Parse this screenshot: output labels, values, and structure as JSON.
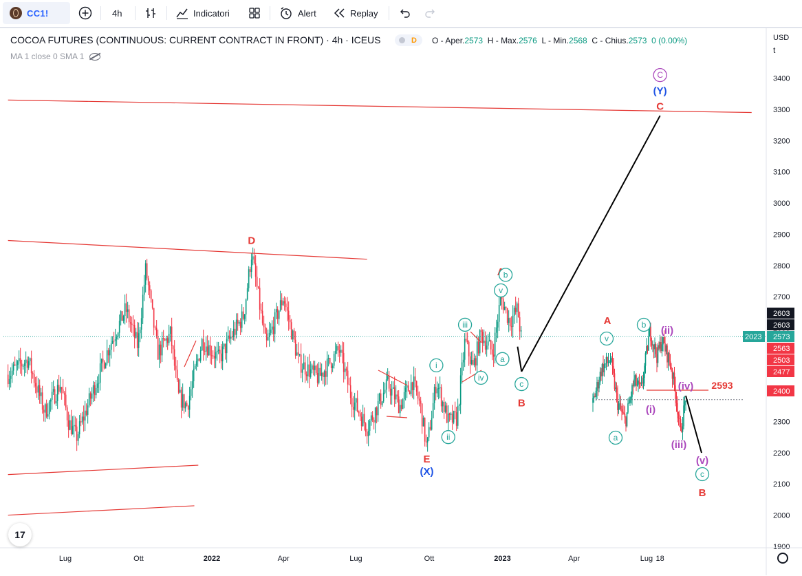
{
  "toolbar": {
    "symbol": "CC1!",
    "interval": "4h",
    "indicators_label": "Indicatori",
    "alert_label": "Alert",
    "replay_label": "Replay"
  },
  "legend": {
    "title": "COCOA FUTURES (CONTINUOUS: CURRENT CONTRACT IN FRONT) · 4h · ICEUS",
    "d_badge": "D",
    "ohlc": {
      "open_label": "O - Aper.",
      "open": "2573",
      "high_label": "H - Max.",
      "high": "2576",
      "low_label": "L - Min.",
      "low": "2568",
      "close_label": "C - Chius.",
      "close": "2573",
      "change": "0 (0.00%)"
    },
    "ma_label": "MA 1 close 0 SMA 1"
  },
  "price_axis": {
    "currency": "USD",
    "unit_label": "t",
    "labels": {
      "high1": "2603",
      "high2": "2603",
      "last": "2573",
      "lv1": "2563",
      "lv2": "2503",
      "lv3": "2477",
      "lv4": "2400",
      "inset_badge": "2023"
    }
  },
  "colors": {
    "up": "#089981",
    "down": "#f23645",
    "wave_red": "#e53935",
    "wave_teal": "#26a69a",
    "wave_blue": "#1e53e5",
    "wave_purple": "#ab47bc",
    "badge_last": "#26a69a",
    "badge_black": "#131722"
  },
  "chart_data": {
    "type": "candlestick",
    "symbol": "COCOA FUTURES (CONTINUOUS: CURRENT CONTRACT IN FRONT)",
    "interval": "4h",
    "y_ticks": [
      1900,
      2000,
      2100,
      2200,
      2300,
      2400,
      2500,
      2600,
      2700,
      2800,
      2900,
      3000,
      3100,
      3200,
      3300,
      3400
    ],
    "x_ticks": [
      {
        "label": "Lug",
        "date": "2021-07-01"
      },
      {
        "label": "Ott",
        "date": "2021-10-01"
      },
      {
        "label": "2022",
        "date": "2022-01-01"
      },
      {
        "label": "Apr",
        "date": "2022-04-01"
      },
      {
        "label": "Lug",
        "date": "2022-07-01"
      },
      {
        "label": "Ott",
        "date": "2022-10-01"
      },
      {
        "label": "2023",
        "date": "2023-01-01"
      },
      {
        "label": "Apr",
        "date": "2023-04-01"
      },
      {
        "label": "Lug",
        "date": "2023-07-01"
      },
      {
        "label": "18",
        "date": "2023-07-18"
      }
    ],
    "price_path": [
      [
        "2021-04-20",
        2450
      ],
      [
        "2021-05-15",
        2500
      ],
      [
        "2021-06-05",
        2330
      ],
      [
        "2021-06-25",
        2420
      ],
      [
        "2021-07-05",
        2300
      ],
      [
        "2021-07-15",
        2250
      ],
      [
        "2021-08-05",
        2400
      ],
      [
        "2021-08-25",
        2540
      ],
      [
        "2021-09-15",
        2660
      ],
      [
        "2021-09-30",
        2540
      ],
      [
        "2021-10-10",
        2790
      ],
      [
        "2021-10-25",
        2520
      ],
      [
        "2021-11-10",
        2580
      ],
      [
        "2021-11-20",
        2380
      ],
      [
        "2021-12-01",
        2350
      ],
      [
        "2021-12-20",
        2560
      ],
      [
        "2022-01-10",
        2500
      ],
      [
        "2022-01-25",
        2570
      ],
      [
        "2022-02-10",
        2640
      ],
      [
        "2022-02-20",
        2840
      ],
      [
        "2022-03-10",
        2540
      ],
      [
        "2022-04-01",
        2700
      ],
      [
        "2022-04-20",
        2490
      ],
      [
        "2022-05-15",
        2440
      ],
      [
        "2022-06-10",
        2530
      ],
      [
        "2022-06-25",
        2380
      ],
      [
        "2022-07-15",
        2280
      ],
      [
        "2022-08-10",
        2420
      ],
      [
        "2022-08-25",
        2350
      ],
      [
        "2022-09-10",
        2430
      ],
      [
        "2022-09-20",
        2350
      ],
      [
        "2022-09-28",
        2210
      ],
      [
        "2022-10-10",
        2430
      ],
      [
        "2022-10-25",
        2300
      ],
      [
        "2022-11-05",
        2310
      ],
      [
        "2022-11-15",
        2560
      ],
      [
        "2022-11-25",
        2470
      ],
      [
        "2022-12-05",
        2580
      ],
      [
        "2022-12-20",
        2520
      ],
      [
        "2022-12-30",
        2700
      ],
      [
        "2023-01-10",
        2620
      ],
      [
        "2023-01-20",
        2660
      ],
      [
        "2023-01-25",
        2560
      ]
    ],
    "inset": {
      "note": "zoomed inset panel",
      "price_path": [
        [
          "2023-05-02",
          2360
        ],
        [
          "2023-05-12",
          2470
        ],
        [
          "2023-05-22",
          2500
        ],
        [
          "2023-05-30",
          2360
        ],
        [
          "2023-06-08",
          2300
        ],
        [
          "2023-06-18",
          2430
        ],
        [
          "2023-06-26",
          2400
        ],
        [
          "2023-07-06",
          2590
        ],
        [
          "2023-07-14",
          2510
        ],
        [
          "2023-07-20",
          2560
        ],
        [
          "2023-07-30",
          2480
        ],
        [
          "2023-08-05",
          2380
        ],
        [
          "2023-08-10",
          2260
        ],
        [
          "2023-08-16",
          2380
        ]
      ]
    },
    "wave_labels": [
      {
        "text": "D",
        "color": "red",
        "date": "2022-02-20",
        "price": 2880
      },
      {
        "text": "E",
        "color": "red",
        "date": "2022-09-28",
        "price": 2180
      },
      {
        "text": "(X)",
        "color": "blue",
        "date": "2022-09-28",
        "price": 2140
      },
      {
        "text": "i",
        "circled": true,
        "color": "teal",
        "date": "2022-10-10",
        "price": 2480
      },
      {
        "text": "ii",
        "circled": true,
        "color": "teal",
        "date": "2022-10-25",
        "price": 2250
      },
      {
        "text": "iii",
        "circled": true,
        "color": "teal",
        "date": "2022-11-15",
        "price": 2610
      },
      {
        "text": "iv",
        "circled": true,
        "color": "teal",
        "date": "2022-12-05",
        "price": 2440
      },
      {
        "text": "v",
        "circled": true,
        "color": "teal",
        "date": "2022-12-30",
        "price": 2720
      },
      {
        "text": "A",
        "color": "red",
        "date": "2022-12-30",
        "price": 2780
      },
      {
        "text": "a",
        "circled": true,
        "color": "teal",
        "date": "2023-01-01",
        "price": 2500
      },
      {
        "text": "b",
        "circled": true,
        "color": "teal",
        "date": "2023-01-05",
        "price": 2770
      },
      {
        "text": "c",
        "circled": true,
        "color": "teal",
        "date": "2023-01-25",
        "price": 2420
      },
      {
        "text": "B",
        "color": "red",
        "date": "2023-01-25",
        "price": 2360
      },
      {
        "text": "C",
        "color": "red",
        "date": "2023-07-18",
        "price": 3310
      },
      {
        "text": "(Y)",
        "color": "blue",
        "date": "2023-07-18",
        "price": 3360
      },
      {
        "text": "C",
        "circled": true,
        "color": "purple",
        "date": "2023-07-18",
        "price": 3410
      },
      {
        "text": "A",
        "color": "red",
        "inset": true,
        "price": 2660
      },
      {
        "text": "v",
        "circled": true,
        "color": "teal",
        "inset": true,
        "price": 2610
      },
      {
        "text": "a",
        "circled": true,
        "color": "teal",
        "inset": true,
        "price": 2250
      },
      {
        "text": "b",
        "circled": true,
        "color": "teal",
        "inset": true,
        "price": 2640
      },
      {
        "text": "(ii)",
        "color": "purple",
        "inset": true,
        "price": 2620
      },
      {
        "text": "(i)",
        "color": "purple",
        "inset": true,
        "price": 2330
      },
      {
        "text": "(iv)",
        "color": "purple",
        "inset": true,
        "price": 2420
      },
      {
        "text": "(iii)",
        "color": "purple",
        "inset": true,
        "price": 2230
      },
      {
        "text": "(v)",
        "color": "purple",
        "inset": true,
        "price": 2190
      },
      {
        "text": "c",
        "circled": true,
        "color": "teal",
        "inset": true,
        "price": 2150
      },
      {
        "text": "B",
        "color": "red",
        "inset": true,
        "price": 2080
      },
      {
        "text": "2593",
        "color": "red",
        "inset": true,
        "price": 2420
      }
    ],
    "trendlines": [
      {
        "color": "red",
        "from": [
          "2021-04-20",
          3330
        ],
        "to": [
          "2023-11-10",
          3290
        ]
      },
      {
        "color": "red",
        "from": [
          "2021-04-20",
          2880
        ],
        "to": [
          "2022-07-15",
          2820
        ]
      },
      {
        "color": "red",
        "from": [
          "2021-04-20",
          2130
        ],
        "to": [
          "2021-12-15",
          2160
        ]
      },
      {
        "color": "red",
        "from": [
          "2021-04-20",
          2000
        ],
        "to": [
          "2021-12-10",
          2030
        ]
      }
    ],
    "projection": [
      {
        "color": "black",
        "from": [
          "2023-01-20",
          2540
        ],
        "to": [
          "2023-01-25",
          2460
        ]
      },
      {
        "color": "black",
        "from": [
          "2023-01-25",
          2460
        ],
        "to": [
          "2023-07-18",
          3280
        ]
      }
    ],
    "last_price": 2573
  }
}
